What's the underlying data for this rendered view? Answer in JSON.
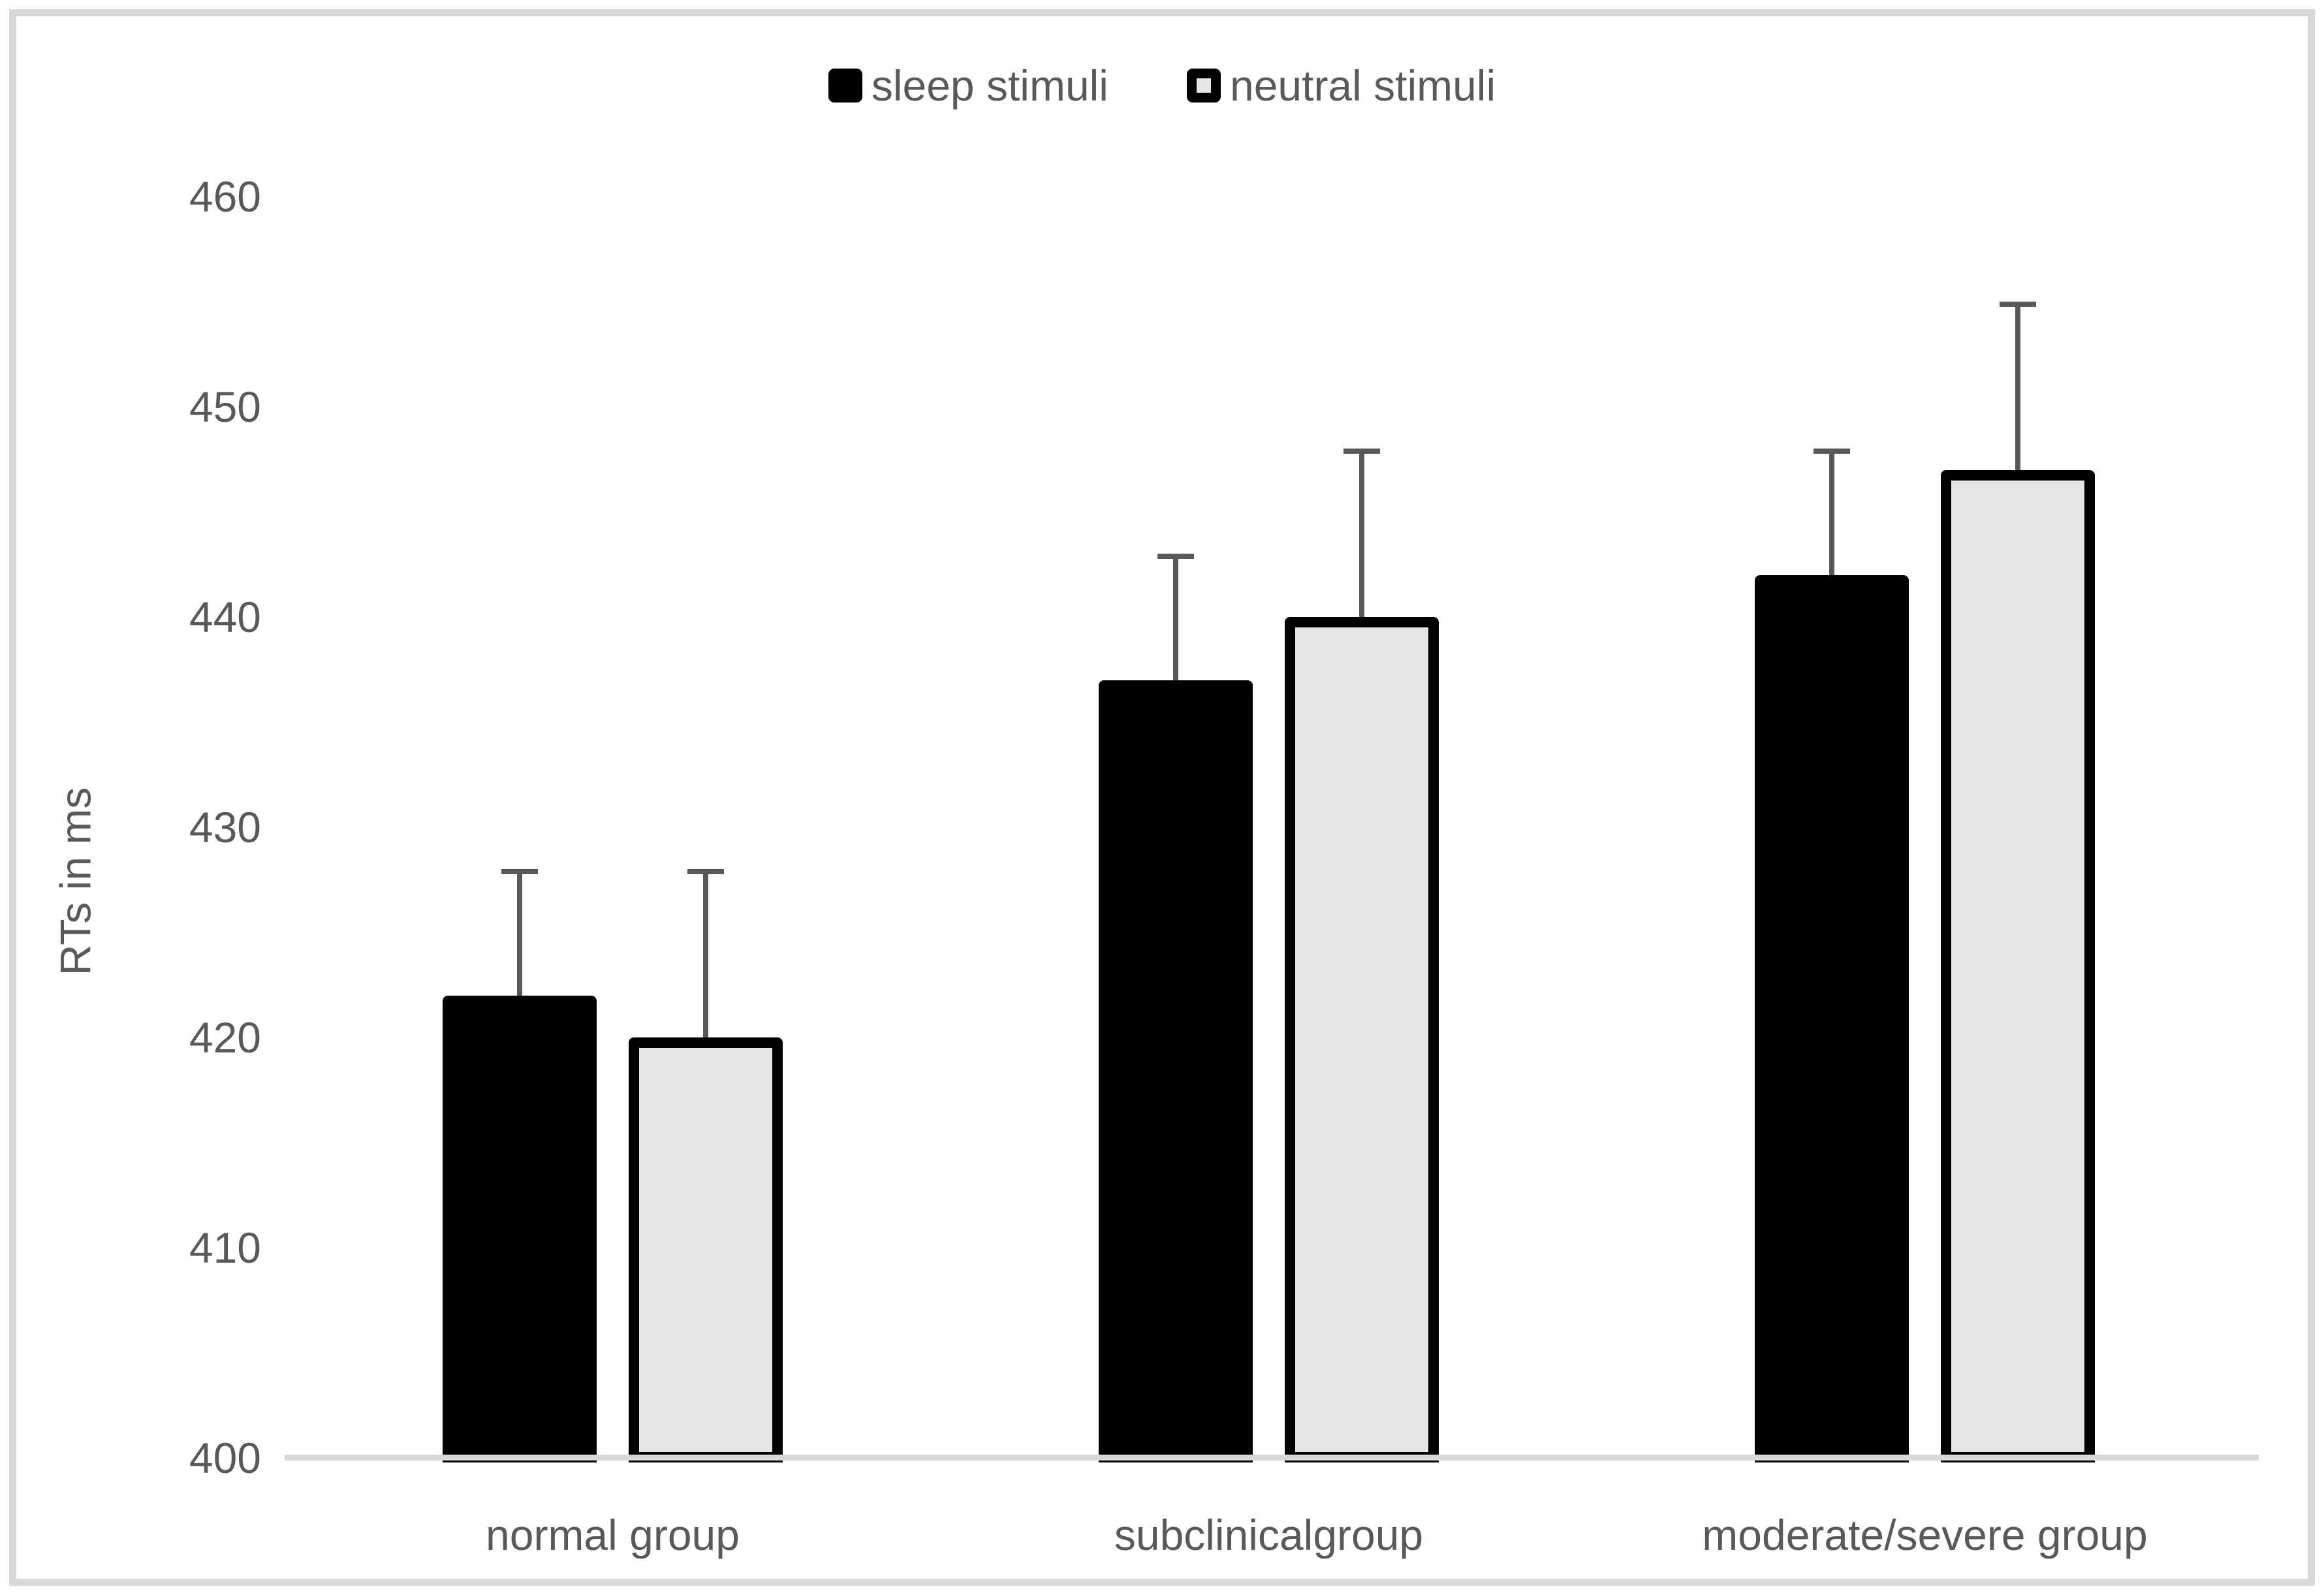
{
  "chart_data": {
    "type": "bar",
    "title": "",
    "categories": [
      "normal group",
      "subclinicalgroup",
      "moderate/severe group"
    ],
    "series": [
      {
        "name": "sleep stimuli",
        "values": [
          422,
          437,
          442
        ],
        "error_upper": [
          428,
          443,
          448
        ]
      },
      {
        "name": "neutral stimuli",
        "values": [
          420,
          440,
          447
        ],
        "error_upper": [
          428,
          448,
          455
        ]
      }
    ],
    "ylabel": "RTs in ms",
    "xlabel": "",
    "ylim": [
      400,
      460
    ],
    "yticks": [
      400,
      410,
      420,
      430,
      440,
      450,
      460
    ],
    "grid": false,
    "legend_position": "top-center",
    "colors": {
      "series_sleep_fill": "#000000",
      "series_neutral_fill": "#e6e6e6",
      "series_neutral_border": "#000000",
      "text": "#595959",
      "axis_line": "#d9d9d9",
      "error_bar": "#595959",
      "frame_border": "#d9d9d9",
      "background": "#ffffff"
    }
  }
}
